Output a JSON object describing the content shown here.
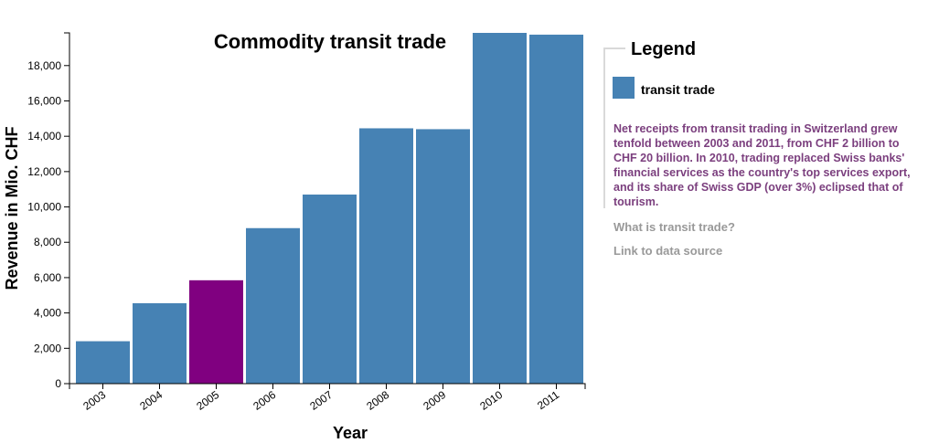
{
  "chart_data": {
    "type": "bar",
    "title": "Commodity transit trade",
    "xlabel": "Year",
    "ylabel": "Revenue in Mio. CHF",
    "categories": [
      "2003",
      "2004",
      "2005",
      "2006",
      "2007",
      "2008",
      "2009",
      "2010",
      "2011"
    ],
    "series": [
      {
        "name": "transit trade",
        "values": [
          2400,
          4550,
          5850,
          8800,
          10700,
          14450,
          14400,
          19850,
          19750
        ]
      }
    ],
    "ylim": [
      0,
      19850
    ],
    "yticks": [
      0,
      2000,
      4000,
      6000,
      8000,
      10000,
      12000,
      14000,
      16000,
      18000
    ],
    "ytick_labels": [
      "0",
      "2,000",
      "4,000",
      "6,000",
      "8,000",
      "10,000",
      "12,000",
      "14,000",
      "16,000",
      "18,000"
    ],
    "highlighted_category": "2005",
    "colors": {
      "bar": "#4682b4",
      "highlight": "#800080"
    },
    "grid": false,
    "legend": {
      "title": "Legend",
      "placement": "right"
    }
  },
  "panel": {
    "description": "Net receipts from transit trading in Switzerland grew tenfold between 2003 and 2011, from CHF 2 billion to CHF 20 billion. In 2010, trading replaced Swiss banks' financial services as the country's top services export, and its share of Swiss GDP (over 3%) eclipsed that of tourism.",
    "link_what": "What is transit trade?",
    "link_source": "Link to data source"
  }
}
